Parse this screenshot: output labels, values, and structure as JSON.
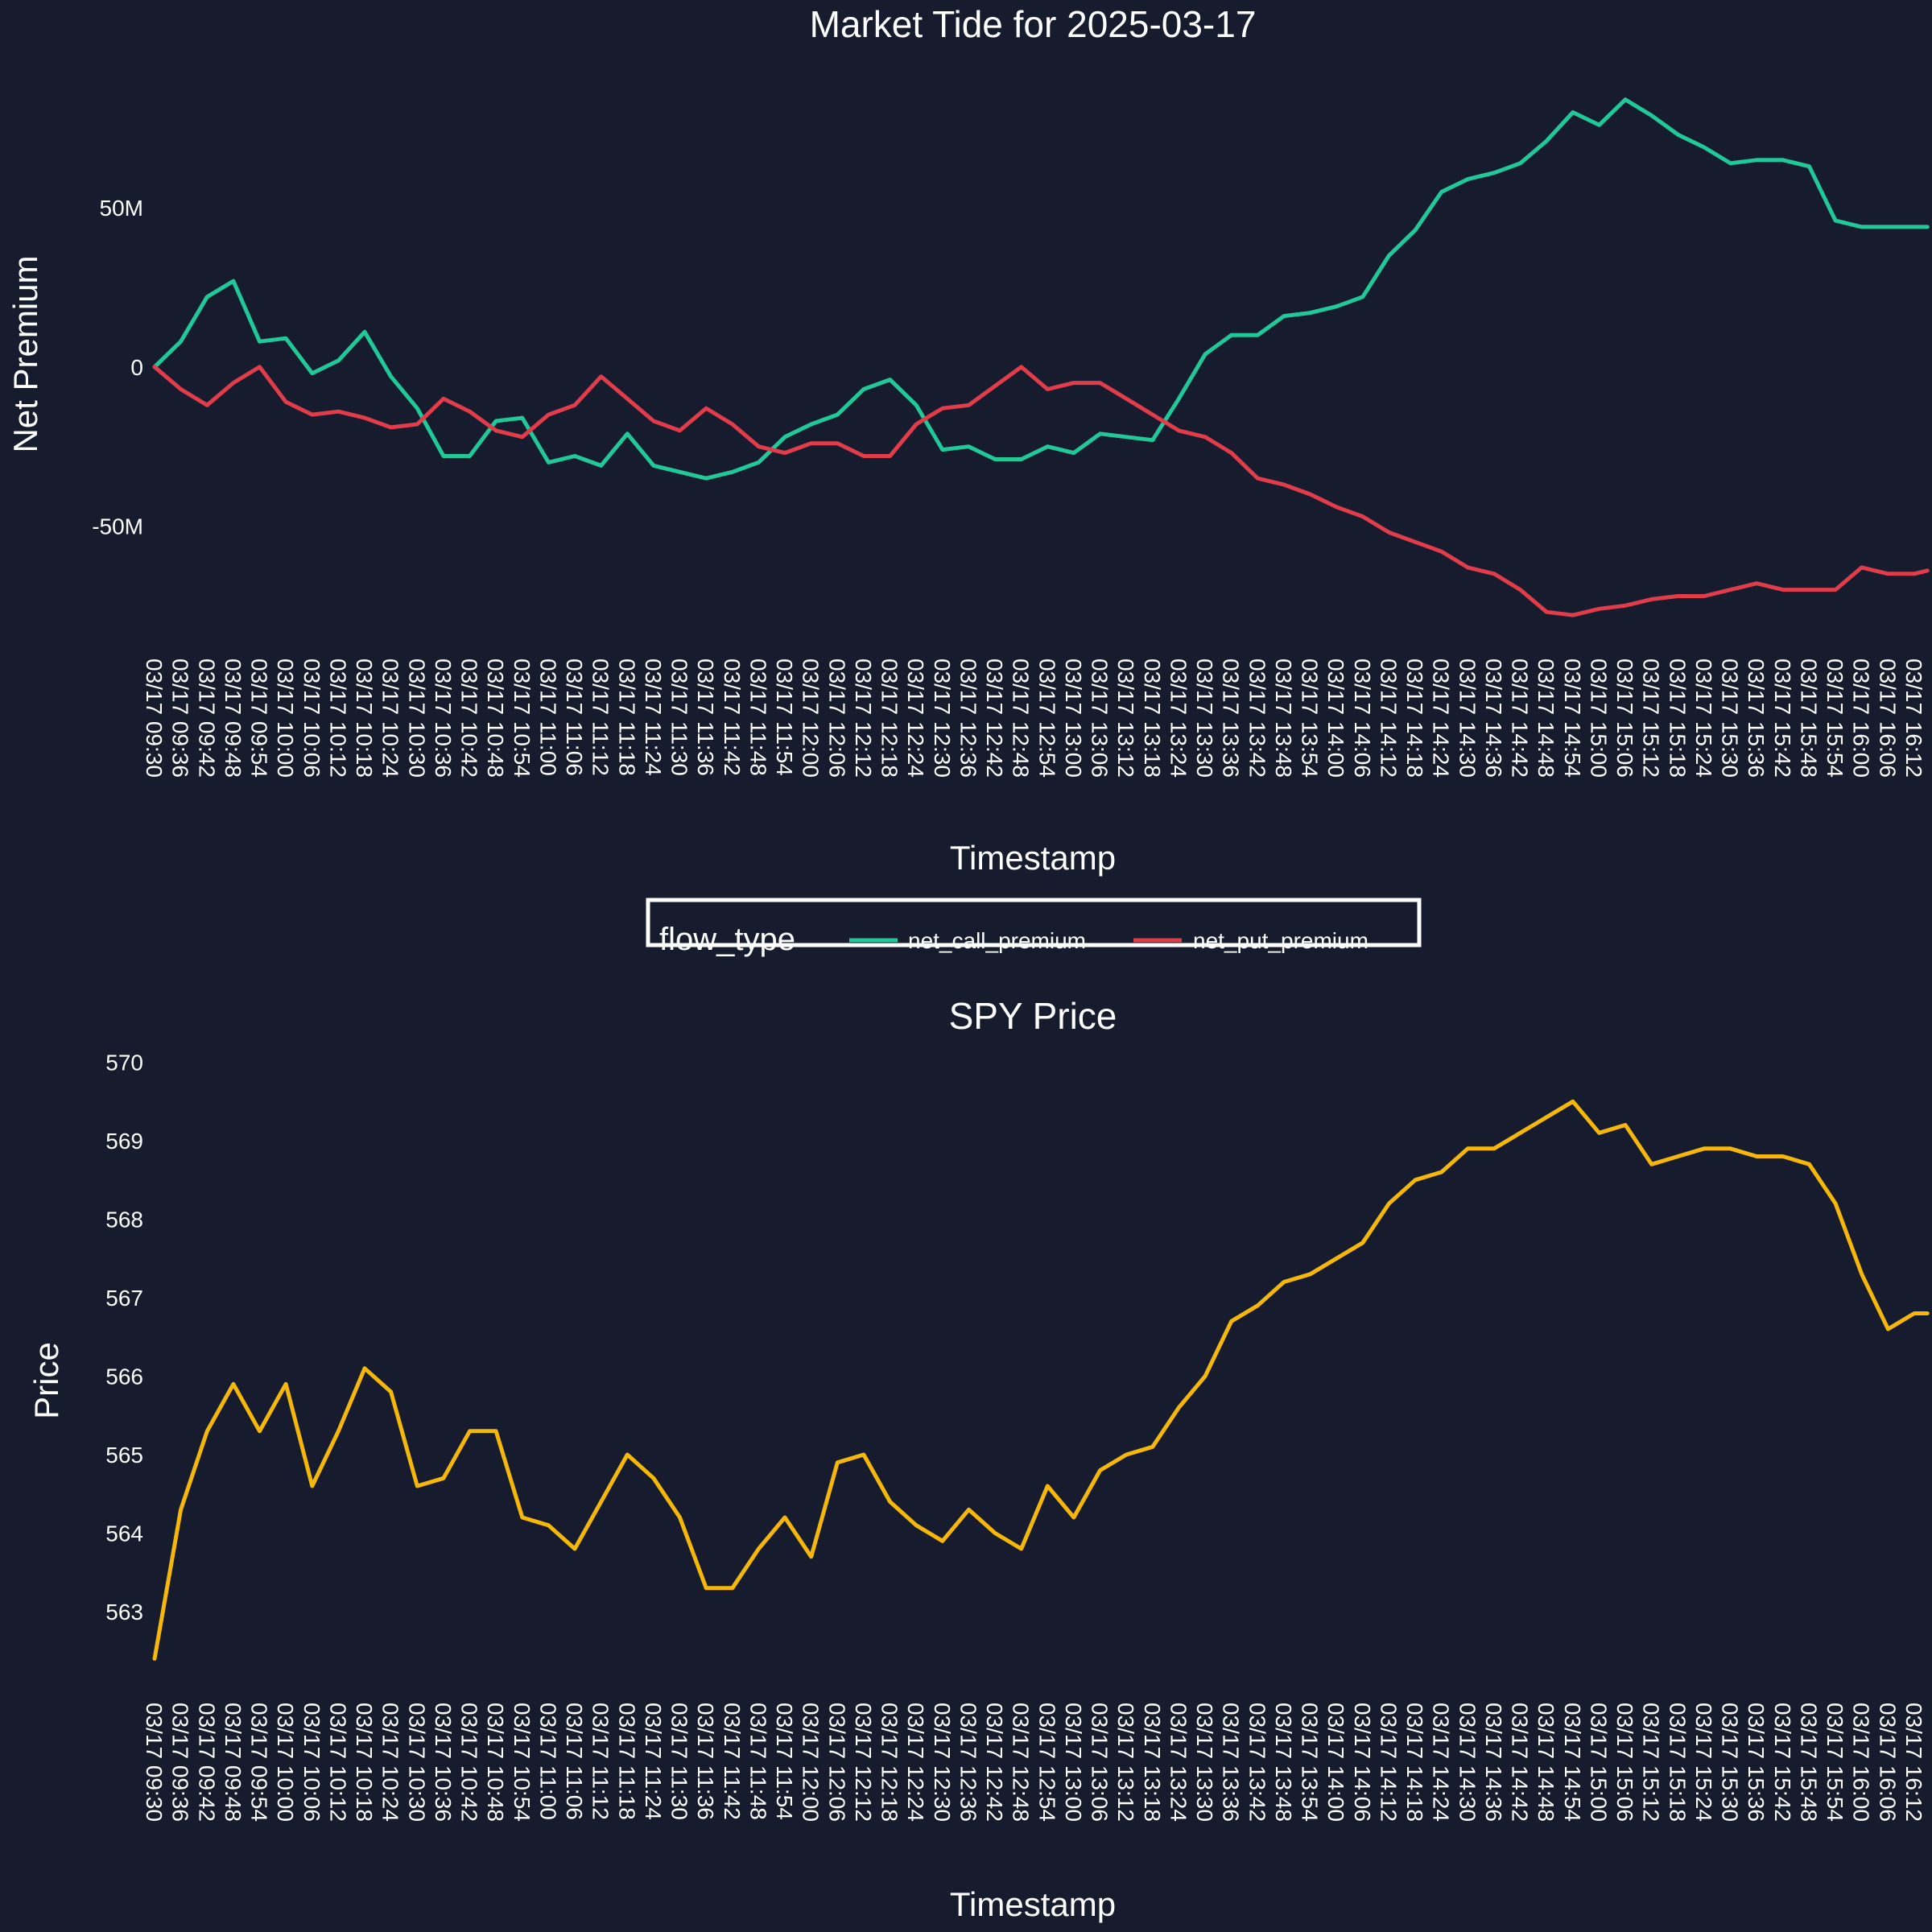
{
  "chart_data": [
    {
      "type": "line",
      "title": "Market Tide for 2025-03-17",
      "xlabel": "Timestamp",
      "ylabel": "Net Premium",
      "yticks": [
        {
          "value": 50000000,
          "label": "50M"
        },
        {
          "value": 0,
          "label": "0"
        },
        {
          "value": -50000000,
          "label": "-50M"
        }
      ],
      "ylim": [
        -82000000,
        90000000
      ],
      "xticks": [
        "03/17 09:30",
        "03/17 09:36",
        "03/17 09:42",
        "03/17 09:48",
        "03/17 09:54",
        "03/17 10:00",
        "03/17 10:06",
        "03/17 10:12",
        "03/17 10:18",
        "03/17 10:24",
        "03/17 10:30",
        "03/17 10:36",
        "03/17 10:42",
        "03/17 10:48",
        "03/17 10:54",
        "03/17 11:00",
        "03/17 11:06",
        "03/17 11:12",
        "03/17 11:18",
        "03/17 11:24",
        "03/17 11:30",
        "03/17 11:36",
        "03/17 11:42",
        "03/17 11:48",
        "03/17 11:54",
        "03/17 12:00",
        "03/17 12:06",
        "03/17 12:12",
        "03/17 12:18",
        "03/17 12:24",
        "03/17 12:30",
        "03/17 12:36",
        "03/17 12:42",
        "03/17 12:48",
        "03/17 12:54",
        "03/17 13:00",
        "03/17 13:06",
        "03/17 13:12",
        "03/17 13:18",
        "03/17 13:24",
        "03/17 13:30",
        "03/17 13:36",
        "03/17 13:42",
        "03/17 13:48",
        "03/17 13:54",
        "03/17 14:00",
        "03/17 14:06",
        "03/17 14:12",
        "03/17 14:18",
        "03/17 14:24",
        "03/17 14:30",
        "03/17 14:36",
        "03/17 14:42",
        "03/17 14:48",
        "03/17 14:54",
        "03/17 15:00",
        "03/17 15:06",
        "03/17 15:12",
        "03/17 15:18",
        "03/17 15:24",
        "03/17 15:30",
        "03/17 15:36",
        "03/17 15:42",
        "03/17 15:48",
        "03/17 15:54",
        "03/17 16:00",
        "03/17 16:06",
        "03/17 16:12"
      ],
      "grid": false,
      "legend": {
        "title": "flow_type",
        "placement": "below plot, centered",
        "entries": [
          "net_call_premium",
          "net_put_premium"
        ]
      },
      "series": [
        {
          "name": "net_call_premium",
          "color": "#20c997",
          "x": [
            "03/17 09:30",
            "03/17 09:36",
            "03/17 09:42",
            "03/17 09:48",
            "03/17 09:54",
            "03/17 10:00",
            "03/17 10:06",
            "03/17 10:12",
            "03/17 10:18",
            "03/17 10:24",
            "03/17 10:30",
            "03/17 10:36",
            "03/17 10:42",
            "03/17 10:48",
            "03/17 10:54",
            "03/17 11:00",
            "03/17 11:06",
            "03/17 11:12",
            "03/17 11:18",
            "03/17 11:24",
            "03/17 11:30",
            "03/17 11:36",
            "03/17 11:42",
            "03/17 11:48",
            "03/17 11:54",
            "03/17 12:00",
            "03/17 12:06",
            "03/17 12:12",
            "03/17 12:18",
            "03/17 12:24",
            "03/17 12:30",
            "03/17 12:36",
            "03/17 12:42",
            "03/17 12:48",
            "03/17 12:54",
            "03/17 13:00",
            "03/17 13:06",
            "03/17 13:12",
            "03/17 13:18",
            "03/17 13:24",
            "03/17 13:30",
            "03/17 13:36",
            "03/17 13:42",
            "03/17 13:48",
            "03/17 13:54",
            "03/17 14:00",
            "03/17 14:06",
            "03/17 14:12",
            "03/17 14:18",
            "03/17 14:24",
            "03/17 14:30",
            "03/17 14:36",
            "03/17 14:42",
            "03/17 14:48",
            "03/17 14:54",
            "03/17 15:00",
            "03/17 15:06",
            "03/17 15:12",
            "03/17 15:18",
            "03/17 15:24",
            "03/17 15:30",
            "03/17 15:36",
            "03/17 15:42",
            "03/17 15:48",
            "03/17 15:54",
            "03/17 16:00",
            "03/17 16:06",
            "03/17 16:12",
            "03/17 16:15"
          ],
          "values": [
            0,
            8000000,
            22000000,
            27000000,
            8000000,
            9000000,
            -2000000,
            2000000,
            11000000,
            -3000000,
            -13000000,
            -28000000,
            -28000000,
            -17000000,
            -16000000,
            -30000000,
            -28000000,
            -31000000,
            -21000000,
            -31000000,
            -33000000,
            -35000000,
            -33000000,
            -30000000,
            -22000000,
            -18000000,
            -15000000,
            -7000000,
            -4000000,
            -12000000,
            -26000000,
            -25000000,
            -29000000,
            -29000000,
            -25000000,
            -27000000,
            -21000000,
            -22000000,
            -23000000,
            -10000000,
            4000000,
            10000000,
            10000000,
            16000000,
            17000000,
            19000000,
            22000000,
            35000000,
            43000000,
            55000000,
            59000000,
            61000000,
            64000000,
            71000000,
            80000000,
            76000000,
            84000000,
            79000000,
            73000000,
            69000000,
            64000000,
            65000000,
            65000000,
            63000000,
            46000000,
            44000000,
            44000000,
            44000000,
            44000000
          ]
        },
        {
          "name": "net_put_premium",
          "color": "#e03c4a",
          "x": [
            "03/17 09:30",
            "03/17 09:36",
            "03/17 09:42",
            "03/17 09:48",
            "03/17 09:54",
            "03/17 10:00",
            "03/17 10:06",
            "03/17 10:12",
            "03/17 10:18",
            "03/17 10:24",
            "03/17 10:30",
            "03/17 10:36",
            "03/17 10:42",
            "03/17 10:48",
            "03/17 10:54",
            "03/17 11:00",
            "03/17 11:06",
            "03/17 11:12",
            "03/17 11:18",
            "03/17 11:24",
            "03/17 11:30",
            "03/17 11:36",
            "03/17 11:42",
            "03/17 11:48",
            "03/17 11:54",
            "03/17 12:00",
            "03/17 12:06",
            "03/17 12:12",
            "03/17 12:18",
            "03/17 12:24",
            "03/17 12:30",
            "03/17 12:36",
            "03/17 12:42",
            "03/17 12:48",
            "03/17 12:54",
            "03/17 13:00",
            "03/17 13:06",
            "03/17 13:12",
            "03/17 13:18",
            "03/17 13:24",
            "03/17 13:30",
            "03/17 13:36",
            "03/17 13:42",
            "03/17 13:48",
            "03/17 13:54",
            "03/17 14:00",
            "03/17 14:06",
            "03/17 14:12",
            "03/17 14:18",
            "03/17 14:24",
            "03/17 14:30",
            "03/17 14:36",
            "03/17 14:42",
            "03/17 14:48",
            "03/17 14:54",
            "03/17 15:00",
            "03/17 15:06",
            "03/17 15:12",
            "03/17 15:18",
            "03/17 15:24",
            "03/17 15:30",
            "03/17 15:36",
            "03/17 15:42",
            "03/17 15:48",
            "03/17 15:54",
            "03/17 16:00",
            "03/17 16:06",
            "03/17 16:12",
            "03/17 16:15"
          ],
          "values": [
            0,
            -7000000,
            -12000000,
            -5000000,
            0,
            -11000000,
            -15000000,
            -14000000,
            -16000000,
            -19000000,
            -18000000,
            -10000000,
            -14000000,
            -20000000,
            -22000000,
            -15000000,
            -12000000,
            -3000000,
            -10000000,
            -17000000,
            -20000000,
            -13000000,
            -18000000,
            -25000000,
            -27000000,
            -24000000,
            -24000000,
            -28000000,
            -28000000,
            -18000000,
            -13000000,
            -12000000,
            -6000000,
            0,
            -7000000,
            -5000000,
            -5000000,
            -10000000,
            -15000000,
            -20000000,
            -22000000,
            -27000000,
            -35000000,
            -37000000,
            -40000000,
            -44000000,
            -47000000,
            -52000000,
            -55000000,
            -58000000,
            -63000000,
            -65000000,
            -70000000,
            -77000000,
            -78000000,
            -76000000,
            -75000000,
            -73000000,
            -72000000,
            -72000000,
            -70000000,
            -68000000,
            -70000000,
            -70000000,
            -70000000,
            -63000000,
            -65000000,
            -65000000,
            -64000000
          ]
        }
      ]
    },
    {
      "type": "line",
      "title": "SPY Price",
      "xlabel": "Timestamp",
      "ylabel": "Price",
      "yticks": [
        {
          "value": 563,
          "label": "563"
        },
        {
          "value": 564,
          "label": "564"
        },
        {
          "value": 565,
          "label": "565"
        },
        {
          "value": 566,
          "label": "566"
        },
        {
          "value": 567,
          "label": "567"
        },
        {
          "value": 568,
          "label": "568"
        },
        {
          "value": 569,
          "label": "569"
        },
        {
          "value": 570,
          "label": "570"
        }
      ],
      "ylim": [
        562.2,
        570.2
      ],
      "xticks": [
        "03/17 09:30",
        "03/17 09:36",
        "03/17 09:42",
        "03/17 09:48",
        "03/17 09:54",
        "03/17 10:00",
        "03/17 10:06",
        "03/17 10:12",
        "03/17 10:18",
        "03/17 10:24",
        "03/17 10:30",
        "03/17 10:36",
        "03/17 10:42",
        "03/17 10:48",
        "03/17 10:54",
        "03/17 11:00",
        "03/17 11:06",
        "03/17 11:12",
        "03/17 11:18",
        "03/17 11:24",
        "03/17 11:30",
        "03/17 11:36",
        "03/17 11:42",
        "03/17 11:48",
        "03/17 11:54",
        "03/17 12:00",
        "03/17 12:06",
        "03/17 12:12",
        "03/17 12:18",
        "03/17 12:24",
        "03/17 12:30",
        "03/17 12:36",
        "03/17 12:42",
        "03/17 12:48",
        "03/17 12:54",
        "03/17 13:00",
        "03/17 13:06",
        "03/17 13:12",
        "03/17 13:18",
        "03/17 13:24",
        "03/17 13:30",
        "03/17 13:36",
        "03/17 13:42",
        "03/17 13:48",
        "03/17 13:54",
        "03/17 14:00",
        "03/17 14:06",
        "03/17 14:12",
        "03/17 14:18",
        "03/17 14:24",
        "03/17 14:30",
        "03/17 14:36",
        "03/17 14:42",
        "03/17 14:48",
        "03/17 14:54",
        "03/17 15:00",
        "03/17 15:06",
        "03/17 15:12",
        "03/17 15:18",
        "03/17 15:24",
        "03/17 15:30",
        "03/17 15:36",
        "03/17 15:42",
        "03/17 15:48",
        "03/17 15:54",
        "03/17 16:00",
        "03/17 16:06",
        "03/17 16:12"
      ],
      "grid": false,
      "series": [
        {
          "color": "#f5b70a",
          "x": [
            "03/17 09:30",
            "03/17 09:36",
            "03/17 09:42",
            "03/17 09:48",
            "03/17 09:54",
            "03/17 10:00",
            "03/17 10:06",
            "03/17 10:12",
            "03/17 10:18",
            "03/17 10:24",
            "03/17 10:30",
            "03/17 10:36",
            "03/17 10:42",
            "03/17 10:48",
            "03/17 10:54",
            "03/17 11:00",
            "03/17 11:06",
            "03/17 11:12",
            "03/17 11:18",
            "03/17 11:24",
            "03/17 11:30",
            "03/17 11:36",
            "03/17 11:42",
            "03/17 11:48",
            "03/17 11:54",
            "03/17 12:00",
            "03/17 12:06",
            "03/17 12:12",
            "03/17 12:18",
            "03/17 12:24",
            "03/17 12:30",
            "03/17 12:36",
            "03/17 12:42",
            "03/17 12:48",
            "03/17 12:54",
            "03/17 13:00",
            "03/17 13:06",
            "03/17 13:12",
            "03/17 13:18",
            "03/17 13:24",
            "03/17 13:30",
            "03/17 13:36",
            "03/17 13:42",
            "03/17 13:48",
            "03/17 13:54",
            "03/17 14:00",
            "03/17 14:06",
            "03/17 14:12",
            "03/17 14:18",
            "03/17 14:24",
            "03/17 14:30",
            "03/17 14:36",
            "03/17 14:42",
            "03/17 14:48",
            "03/17 14:54",
            "03/17 15:00",
            "03/17 15:06",
            "03/17 15:12",
            "03/17 15:18",
            "03/17 15:24",
            "03/17 15:30",
            "03/17 15:36",
            "03/17 15:42",
            "03/17 15:48",
            "03/17 15:54",
            "03/17 16:00",
            "03/17 16:06",
            "03/17 16:12",
            "03/17 16:15"
          ],
          "values": [
            562.4,
            564.3,
            565.3,
            565.9,
            565.3,
            565.9,
            564.6,
            565.3,
            566.1,
            565.8,
            564.6,
            564.7,
            565.3,
            565.3,
            564.2,
            564.1,
            563.8,
            564.4,
            565.0,
            564.7,
            564.2,
            563.3,
            563.3,
            563.8,
            564.2,
            563.7,
            564.9,
            565.0,
            564.4,
            564.1,
            563.9,
            564.3,
            564.0,
            563.8,
            564.6,
            564.2,
            564.8,
            565.0,
            565.1,
            565.6,
            566.0,
            566.7,
            566.9,
            567.2,
            567.3,
            567.5,
            567.7,
            568.2,
            568.5,
            568.6,
            568.9,
            568.9,
            569.1,
            569.3,
            569.5,
            569.1,
            569.2,
            568.7,
            568.8,
            568.9,
            568.9,
            568.8,
            568.8,
            568.7,
            568.2,
            567.3,
            566.6,
            566.8,
            566.8
          ]
        }
      ]
    }
  ]
}
